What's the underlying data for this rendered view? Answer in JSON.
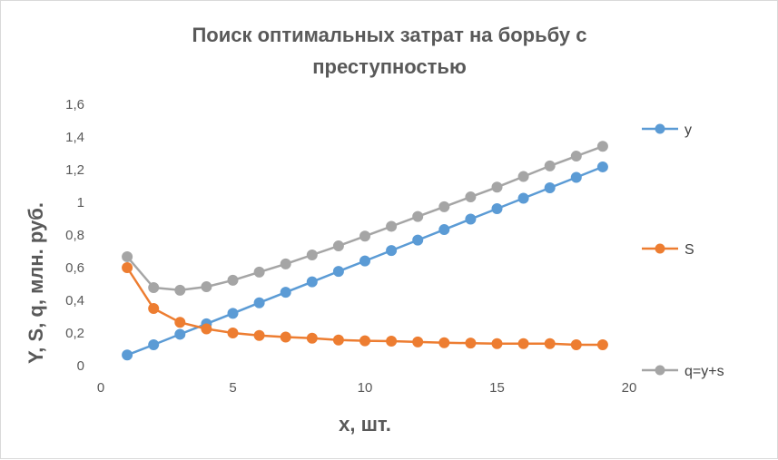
{
  "chart_data": {
    "type": "scatter",
    "title_line1": "Поиск оптимальных затрат на борьбу с",
    "title_line2": "преступностью",
    "xlabel": "x, шт.",
    "ylabel": "Y, S, q, млн. руб.",
    "xlim": [
      0,
      20
    ],
    "ylim": [
      0,
      1.6
    ],
    "x_ticks": [
      "0",
      "5",
      "10",
      "15",
      "20"
    ],
    "y_ticks": [
      "0",
      "0,2",
      "0,4",
      "0,6",
      "0,8",
      "1",
      "1,2",
      "1,4",
      "1,6"
    ],
    "grid": "none",
    "legend_position": "right",
    "series": [
      {
        "name": "y",
        "color": "#5b9bd5",
        "x": [
          1,
          2,
          3,
          4,
          5,
          6,
          7,
          8,
          9,
          10,
          11,
          12,
          13,
          14,
          15,
          16,
          17,
          18,
          19
        ],
        "values": [
          0.065,
          0.128,
          0.192,
          0.256,
          0.32,
          0.385,
          0.449,
          0.513,
          0.577,
          0.641,
          0.705,
          0.769,
          0.833,
          0.897,
          0.961,
          1.025,
          1.089,
          1.153,
          1.217
        ]
      },
      {
        "name": "S",
        "color": "#ed7d31",
        "x": [
          1,
          2,
          3,
          4,
          5,
          6,
          7,
          8,
          9,
          10,
          11,
          12,
          13,
          14,
          15,
          16,
          17,
          18,
          19
        ],
        "values": [
          0.6,
          0.35,
          0.265,
          0.225,
          0.2,
          0.185,
          0.175,
          0.168,
          0.157,
          0.152,
          0.15,
          0.145,
          0.14,
          0.138,
          0.135,
          0.135,
          0.135,
          0.128,
          0.128
        ]
      },
      {
        "name": "q=y+s",
        "color": "#a5a5a5",
        "x": [
          1,
          2,
          3,
          4,
          5,
          6,
          7,
          8,
          9,
          10,
          11,
          12,
          13,
          14,
          15,
          16,
          17,
          18,
          19
        ],
        "values": [
          0.667,
          0.478,
          0.462,
          0.483,
          0.523,
          0.573,
          0.623,
          0.678,
          0.733,
          0.793,
          0.853,
          0.913,
          0.973,
          1.033,
          1.093,
          1.158,
          1.223,
          1.283,
          1.343
        ]
      }
    ]
  }
}
